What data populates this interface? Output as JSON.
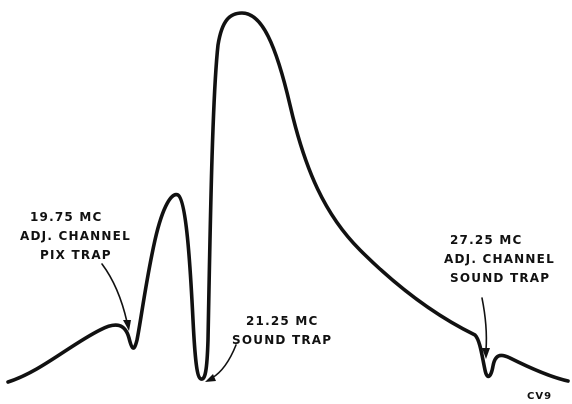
{
  "labels": {
    "pix_trap": {
      "line1": "19.75 MC",
      "line2": "ADJ. CHANNEL",
      "line3": "PIX TRAP"
    },
    "sound_trap": {
      "line1": "21.25 MC",
      "line2": "SOUND TRAP"
    },
    "adj_sound_trap": {
      "line1": "27.25 MC",
      "line2": "ADJ. CHANNEL",
      "line3": "SOUND TRAP"
    },
    "figure_code": "CV9"
  }
}
